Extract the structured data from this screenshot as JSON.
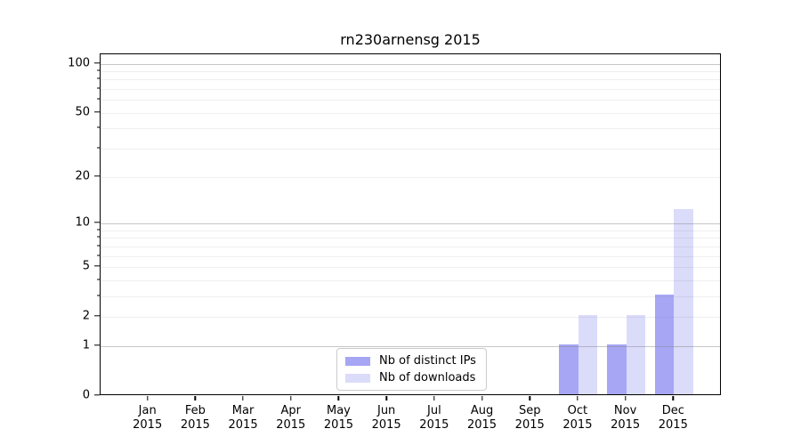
{
  "chart_data": {
    "type": "bar",
    "title": "rn230arnensg 2015",
    "yscale": "log1p",
    "ylim": [
      0,
      114
    ],
    "yticks": [
      0,
      1,
      2,
      5,
      10,
      20,
      50,
      100
    ],
    "major_gridlines": [
      1,
      10,
      100
    ],
    "minor_gridlines": [
      2,
      3,
      4,
      5,
      6,
      7,
      8,
      9,
      20,
      30,
      40,
      50,
      60,
      70,
      80,
      90
    ],
    "grid": true,
    "bar_width_fraction": 0.4,
    "categories": [
      {
        "month": "Jan",
        "year": "2015"
      },
      {
        "month": "Feb",
        "year": "2015"
      },
      {
        "month": "Mar",
        "year": "2015"
      },
      {
        "month": "Apr",
        "year": "2015"
      },
      {
        "month": "May",
        "year": "2015"
      },
      {
        "month": "Jun",
        "year": "2015"
      },
      {
        "month": "Jul",
        "year": "2015"
      },
      {
        "month": "Aug",
        "year": "2015"
      },
      {
        "month": "Sep",
        "year": "2015"
      },
      {
        "month": "Oct",
        "year": "2015"
      },
      {
        "month": "Nov",
        "year": "2015"
      },
      {
        "month": "Dec",
        "year": "2015"
      }
    ],
    "series": [
      {
        "name": "Nb of distinct IPs",
        "color": "#a6a6f5",
        "values": [
          0,
          0,
          0,
          0,
          0,
          0,
          0,
          0,
          0,
          1,
          1,
          3
        ]
      },
      {
        "name": "Nb of downloads",
        "color": "#dbdbfa",
        "values": [
          0,
          0,
          0,
          0,
          0,
          0,
          0,
          0,
          0,
          2,
          2,
          12
        ]
      }
    ],
    "legend_position": "lower center",
    "colors": {
      "axis": "#000000",
      "major_grid": "#c8c8c8",
      "minor_grid": "#ebebeb",
      "background": "#ffffff"
    }
  }
}
